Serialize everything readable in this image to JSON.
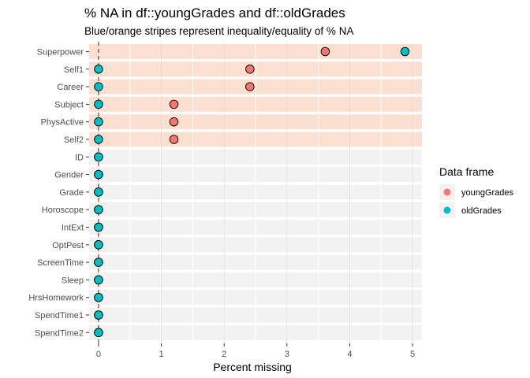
{
  "chart_data": {
    "type": "scatter",
    "title": "% NA in df::youngGrades and df::oldGrades",
    "subtitle": "Blue/orange stripes represent inequality/equality of % NA",
    "xlabel": "Percent missing",
    "ylabel": "",
    "xlim": [
      -0.15,
      5.15
    ],
    "xticks": [
      "0",
      "1",
      "2",
      "3",
      "4",
      "5"
    ],
    "grid": true,
    "legend_placement": "right",
    "reference_line_x": 0,
    "categories": [
      "Superpower",
      "Self1",
      "Career",
      "Subject",
      "PhysActive",
      "Self2",
      "ID",
      "Gender",
      "Grade",
      "Horoscope",
      "IntExt",
      "OptPest",
      "ScreenTime",
      "Sleep",
      "HrsHomework",
      "SpendTime1",
      "SpendTime2"
    ],
    "stripes": [
      "unequal",
      "unequal",
      "unequal",
      "unequal",
      "unequal",
      "unequal",
      "equal",
      "equal",
      "equal",
      "equal",
      "equal",
      "equal",
      "equal",
      "equal",
      "equal",
      "equal",
      "equal"
    ],
    "stripe_colors": {
      "unequal": "#fbe0d1",
      "equal": "#f2f2f2"
    },
    "legend_title": "Data frame",
    "series": [
      {
        "name": "youngGrades",
        "color": "#f8766d",
        "values": [
          3.61,
          2.41,
          2.41,
          1.2,
          1.2,
          1.2,
          0,
          0,
          0,
          0,
          0,
          0,
          0,
          0,
          0,
          0,
          0
        ]
      },
      {
        "name": "oldGrades",
        "color": "#00bfc4",
        "values": [
          4.88,
          0,
          0,
          0,
          0,
          0,
          0,
          0,
          0,
          0,
          0,
          0,
          0,
          0,
          0,
          0,
          0
        ]
      }
    ]
  }
}
